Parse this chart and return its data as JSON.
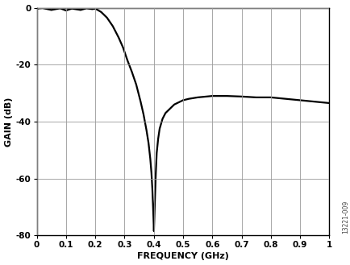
{
  "title": "",
  "xlabel": "FREQUENCY (GHz)",
  "ylabel": "GAIN (dB)",
  "xlim": [
    0,
    1.0
  ],
  "ylim": [
    -80,
    0
  ],
  "xticks": [
    0,
    0.1,
    0.2,
    0.3,
    0.4,
    0.5,
    0.6,
    0.7,
    0.8,
    0.9,
    1.0
  ],
  "yticks": [
    0,
    -20,
    -40,
    -60,
    -80
  ],
  "line_color": "#000000",
  "line_width": 1.6,
  "background_color": "#ffffff",
  "grid_color": "#999999",
  "annotation": "13221-009",
  "curve_freqs": [
    0.0,
    0.02,
    0.05,
    0.08,
    0.1,
    0.12,
    0.15,
    0.17,
    0.19,
    0.2,
    0.22,
    0.24,
    0.26,
    0.28,
    0.295,
    0.31,
    0.325,
    0.34,
    0.355,
    0.365,
    0.375,
    0.382,
    0.388,
    0.392,
    0.395,
    0.397,
    0.399,
    0.4005,
    0.402,
    0.404,
    0.407,
    0.41,
    0.415,
    0.42,
    0.43,
    0.44,
    0.45,
    0.46,
    0.47,
    0.48,
    0.49,
    0.5,
    0.52,
    0.55,
    0.58,
    0.6,
    0.65,
    0.7,
    0.75,
    0.8,
    0.85,
    0.9,
    0.95,
    1.0
  ],
  "curve_gains": [
    -0.3,
    -0.1,
    -0.8,
    -0.2,
    -1.0,
    -0.3,
    -0.8,
    -0.2,
    -0.5,
    -0.3,
    -1.5,
    -3.5,
    -6.5,
    -10.5,
    -14.0,
    -18.5,
    -22.5,
    -27.0,
    -33.0,
    -37.5,
    -43.0,
    -47.5,
    -53.0,
    -58.0,
    -63.5,
    -68.5,
    -74.0,
    -78.5,
    -73.5,
    -67.0,
    -58.0,
    -51.0,
    -46.0,
    -42.5,
    -39.0,
    -37.0,
    -36.0,
    -35.0,
    -34.0,
    -33.5,
    -33.0,
    -32.5,
    -32.0,
    -31.5,
    -31.2,
    -31.0,
    -31.0,
    -31.2,
    -31.5,
    -31.5,
    -32.0,
    -32.5,
    -33.0,
    -33.5
  ]
}
